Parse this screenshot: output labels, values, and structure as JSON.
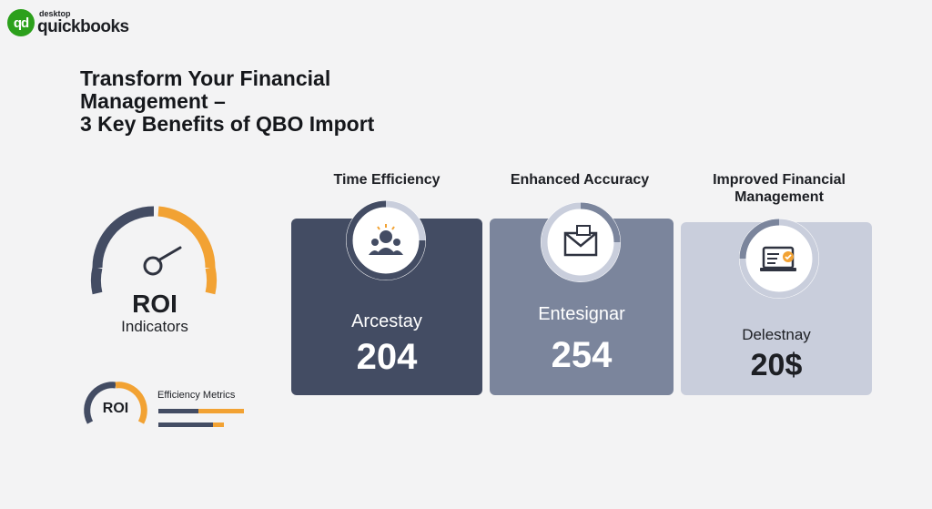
{
  "logo": {
    "small": "desktop",
    "name": "quickbooks",
    "badge": "qd"
  },
  "title": "Transform Your Financial\nManagement –\n3 Key Benefits of QBO Import",
  "roi": {
    "main": "ROI",
    "sub": "Indicators"
  },
  "mini": {
    "label": "ROI",
    "metrics_title": "Efficiency Metrics"
  },
  "columns": [
    {
      "title": "Time Efficiency",
      "label": "Arcestay",
      "value": "204",
      "icon": "team-icon"
    },
    {
      "title": "Enhanced Accuracy",
      "label": "Entesignar",
      "value": "254",
      "icon": "envelope-icon"
    },
    {
      "title": "Improved Financial\nManagement",
      "label": "Delestnay",
      "value": "20$",
      "icon": "laptop-check-icon"
    }
  ],
  "colors": {
    "navy": "#434c63",
    "slate": "#7b859c",
    "light": "#c9cedc",
    "accent": "#f2a233",
    "brand": "#2ca01c"
  }
}
